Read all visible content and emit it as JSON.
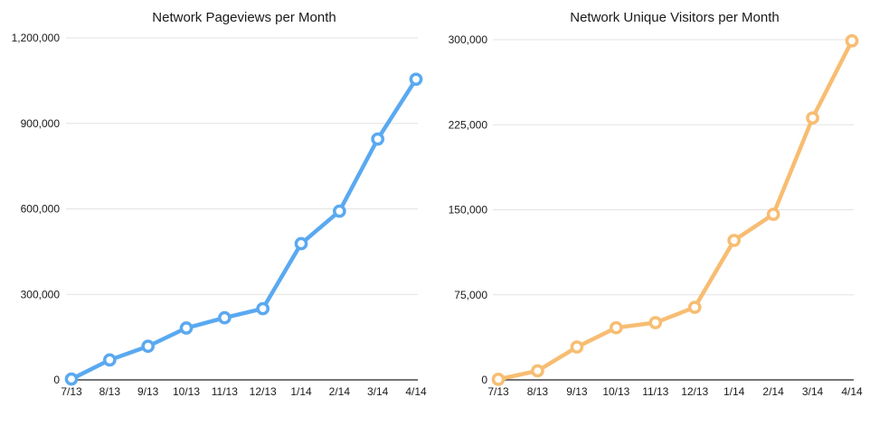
{
  "chart_data": [
    {
      "type": "line",
      "title": "Network Pageviews per Month",
      "xlabel": "",
      "ylabel": "",
      "categories": [
        "7/13",
        "8/13",
        "9/13",
        "10/13",
        "11/13",
        "12/13",
        "1/14",
        "2/14",
        "3/14",
        "4/14"
      ],
      "y_ticks": [
        "0",
        "300,000",
        "600,000",
        "900,000",
        "1,200,000"
      ],
      "ylim": [
        0,
        1200000
      ],
      "grid": true,
      "series": [
        {
          "values": [
            3000,
            70000,
            118000,
            182000,
            218000,
            250000,
            478000,
            592000,
            845000,
            1055000
          ],
          "color": "#5aa9f0"
        }
      ]
    },
    {
      "type": "line",
      "title": "Network Unique Visitors per Month",
      "xlabel": "",
      "ylabel": "",
      "categories": [
        "7/13",
        "8/13",
        "9/13",
        "10/13",
        "11/13",
        "12/13",
        "1/14",
        "2/14",
        "3/14",
        "4/14"
      ],
      "y_ticks": [
        "0",
        "75,000",
        "150,000",
        "225,000",
        "300,000"
      ],
      "ylim": [
        0,
        300000
      ],
      "grid": true,
      "series": [
        {
          "values": [
            500,
            8000,
            29000,
            46000,
            50500,
            64000,
            123000,
            146000,
            231000,
            299000
          ],
          "color": "#f7bd72"
        }
      ]
    }
  ]
}
